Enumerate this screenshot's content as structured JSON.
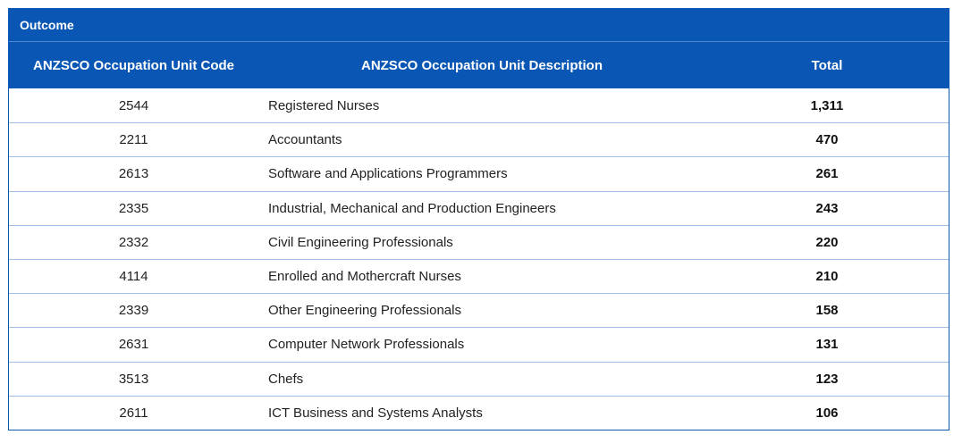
{
  "table": {
    "section_label": "Outcome",
    "headers": {
      "code": "ANZSCO Occupation Unit Code",
      "description": "ANZSCO Occupation Unit Description",
      "total": "Total"
    },
    "rows": [
      {
        "code": "2544",
        "description": "Registered Nurses",
        "total": "1,311"
      },
      {
        "code": "2211",
        "description": "Accountants",
        "total": "470"
      },
      {
        "code": "2613",
        "description": "Software and Applications Programmers",
        "total": "261"
      },
      {
        "code": "2335",
        "description": "Industrial, Mechanical and Production Engineers",
        "total": "243"
      },
      {
        "code": "2332",
        "description": "Civil Engineering Professionals",
        "total": "220"
      },
      {
        "code": "4114",
        "description": "Enrolled and Mothercraft Nurses",
        "total": "210"
      },
      {
        "code": "2339",
        "description": "Other Engineering Professionals",
        "total": "158"
      },
      {
        "code": "2631",
        "description": "Computer Network Professionals",
        "total": "131"
      },
      {
        "code": "3513",
        "description": "Chefs",
        "total": "123"
      },
      {
        "code": "2611",
        "description": "ICT Business and Systems Analysts",
        "total": "106"
      }
    ]
  },
  "colors": {
    "header_bg": "#0a56b4",
    "row_divider": "#9fbde6"
  }
}
